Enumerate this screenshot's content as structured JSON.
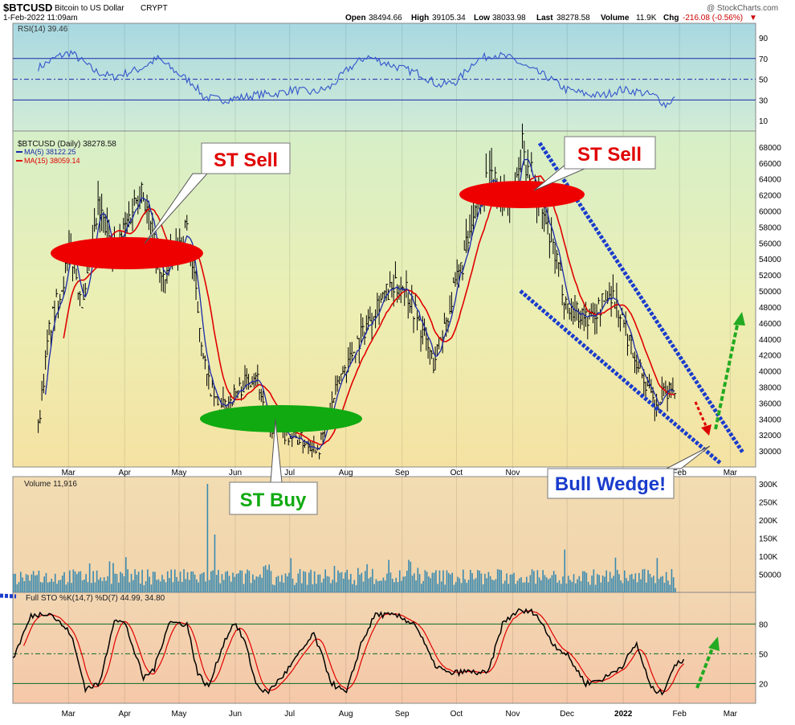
{
  "header": {
    "symbol": "$BTCUSD",
    "name": "Bitcoin to US Dollar",
    "exchange": "CRYPT",
    "date": "1-Feb-2022 11:09am",
    "watermark": "@ StockCharts.com",
    "open_label": "Open",
    "open": "38494.66",
    "high_label": "High",
    "high": "39105.34",
    "low_label": "Low",
    "low": "38033.98",
    "last_label": "Last",
    "last": "38278.58",
    "volume_label": "Volume",
    "volume": "11.9K",
    "chg_label": "Chg",
    "chg": "-216.08 (-0.56%)"
  },
  "colors": {
    "up": "#00aa00",
    "down": "#dd0000",
    "price_bar": "#000000",
    "ma5": "#1a2aa8",
    "ma15": "#e00000",
    "rsi": "#3355cc",
    "volume": "#3a8ab0",
    "sto_k": "#000000",
    "sto_d": "#e00000",
    "wedge": "#1a3ccc",
    "sell": "#ee0000",
    "buy": "#11aa11"
  },
  "chart_data": [
    {
      "type": "line",
      "title": "RSI(14) 39.46",
      "series": [
        {
          "name": "RSI(14)",
          "value_last": 39.46
        }
      ],
      "y_ticks": [
        90,
        70,
        50,
        30,
        10
      ],
      "reference_lines": [
        70,
        50,
        30
      ],
      "key_points": [
        {
          "x": "Feb",
          "y": 61
        },
        {
          "x": "Feb",
          "y": 76
        },
        {
          "x": "Mar",
          "y": 54
        },
        {
          "x": "Apr",
          "y": 70
        },
        {
          "x": "May",
          "y": 36
        },
        {
          "x": "May",
          "y": 25
        },
        {
          "x": "Jun",
          "y": 34
        },
        {
          "x": "Jul",
          "y": 38
        },
        {
          "x": "Jul",
          "y": 42
        },
        {
          "x": "Aug",
          "y": 72
        },
        {
          "x": "Sep",
          "y": 58
        },
        {
          "x": "Sep",
          "y": 45
        },
        {
          "x": "Oct",
          "y": 75
        },
        {
          "x": "Nov",
          "y": 58
        },
        {
          "x": "Dec",
          "y": 33
        },
        {
          "x": "Jan",
          "y": 33
        },
        {
          "x": "Jan",
          "y": 22
        },
        {
          "x": "Feb",
          "y": 39
        }
      ]
    },
    {
      "type": "line",
      "title": "$BTCUSD (Daily) 38278.58",
      "series": [
        {
          "name": "$BTCUSD (Daily)",
          "value_last": 38278.58
        },
        {
          "name": "MA(5)",
          "label": "MA(5) 38122.25",
          "value_last": 38122.25
        },
        {
          "name": "MA(15)",
          "label": "MA(15) 38059.14",
          "value_last": 38059.14
        }
      ],
      "x_ticks": [
        "Mar",
        "Apr",
        "May",
        "Jun",
        "Jul",
        "Aug",
        "Sep",
        "Oct",
        "Nov",
        "Dec",
        "Feb",
        "Mar"
      ],
      "y_ticks": [
        68000,
        66000,
        64000,
        62000,
        60000,
        58000,
        56000,
        54000,
        52000,
        50000,
        48000,
        46000,
        44000,
        42000,
        40000,
        38000,
        36000,
        34000,
        32000,
        30000
      ],
      "y_tick_labels": [
        "68000",
        "66000",
        "64000",
        "62000",
        "60000",
        "58000",
        "56000",
        "54000",
        "52000",
        "50000",
        "48000",
        "46000",
        "44000",
        "42000",
        "40000",
        "38000",
        "36000",
        "34000",
        "32000",
        "30000"
      ],
      "ylim": [
        28000,
        70000
      ],
      "price_key_points": [
        {
          "x": "2021-02-15",
          "y": 33000
        },
        {
          "x": "2021-02-21",
          "y": 45000
        },
        {
          "x": "2021-03-05",
          "y": 55000
        },
        {
          "x": "2021-03-12",
          "y": 48000
        },
        {
          "x": "2021-03-20",
          "y": 60000
        },
        {
          "x": "2021-03-30",
          "y": 55000
        },
        {
          "x": "2021-04-13",
          "y": 63500
        },
        {
          "x": "2021-04-24",
          "y": 51000
        },
        {
          "x": "2021-05-08",
          "y": 58000
        },
        {
          "x": "2021-05-19",
          "y": 39000
        },
        {
          "x": "2021-05-26",
          "y": 35000
        },
        {
          "x": "2021-06-15",
          "y": 40000
        },
        {
          "x": "2021-06-22",
          "y": 33000
        },
        {
          "x": "2021-07-20",
          "y": 30500
        },
        {
          "x": "2021-08-01",
          "y": 39500
        },
        {
          "x": "2021-08-22",
          "y": 49000
        },
        {
          "x": "2021-09-05",
          "y": 51000
        },
        {
          "x": "2021-09-21",
          "y": 41000
        },
        {
          "x": "2021-10-05",
          "y": 52000
        },
        {
          "x": "2021-10-20",
          "y": 64000
        },
        {
          "x": "2021-11-03",
          "y": 61000
        },
        {
          "x": "2021-11-09",
          "y": 68000
        },
        {
          "x": "2021-11-25",
          "y": 56000
        },
        {
          "x": "2021-12-04",
          "y": 48000
        },
        {
          "x": "2021-12-17",
          "y": 46500
        },
        {
          "x": "2021-12-28",
          "y": 50000
        },
        {
          "x": "2022-01-10",
          "y": 42000
        },
        {
          "x": "2022-01-22",
          "y": 35000
        },
        {
          "x": "2022-01-25",
          "y": 36800
        },
        {
          "x": "2022-02-01",
          "y": 38278.58
        }
      ],
      "annotations": [
        "ST Sell",
        "ST Sell",
        "ST Buy",
        "Bull Wedge!"
      ]
    },
    {
      "type": "bar",
      "title": "Volume 11,916",
      "series": [
        {
          "name": "Volume",
          "value_last": 11916
        }
      ],
      "y_ticks": [
        "300K",
        "250K",
        "200K",
        "150K",
        "100K",
        "50000"
      ],
      "ylim": [
        0,
        320000
      ],
      "key_points": [
        {
          "x": "2021-02-15",
          "y": 60000
        },
        {
          "x": "2021-03-15",
          "y": 80000
        },
        {
          "x": "2021-05-19",
          "y": 300000
        },
        {
          "x": "2021-05-23",
          "y": 160000
        },
        {
          "x": "2021-06-20",
          "y": 75000
        },
        {
          "x": "2021-09-07",
          "y": 90000
        },
        {
          "x": "2022-01-22",
          "y": 95000
        },
        {
          "x": "2022-02-01",
          "y": 11916
        }
      ]
    },
    {
      "type": "line",
      "title": "Full STO %K(14,7) %D(7) 44.99, 34.80",
      "series": [
        {
          "name": "%K(14,7)",
          "value_last": 44.99
        },
        {
          "name": "%D(7)",
          "value_last": 34.8
        }
      ],
      "y_ticks": [
        80,
        50,
        20
      ],
      "reference_lines": [
        80,
        50,
        20
      ],
      "x_ticks": [
        "Mar",
        "Apr",
        "May",
        "Jun",
        "Jul",
        "Aug",
        "Sep",
        "Oct",
        "Nov",
        "Dec",
        "2022",
        "Feb",
        "Mar"
      ],
      "key_points": [
        {
          "x": "Feb",
          "y": 45
        },
        {
          "x": "Feb",
          "y": 90
        },
        {
          "x": "Mar",
          "y": 15
        },
        {
          "x": "Mar",
          "y": 85
        },
        {
          "x": "Apr",
          "y": 30
        },
        {
          "x": "Apr",
          "y": 82
        },
        {
          "x": "May",
          "y": 15
        },
        {
          "x": "May",
          "y": 80
        },
        {
          "x": "Jun",
          "y": 12
        },
        {
          "x": "Jun",
          "y": 40
        },
        {
          "x": "Jun",
          "y": 70
        },
        {
          "x": "Jul",
          "y": 10
        },
        {
          "x": "Aug",
          "y": 90
        },
        {
          "x": "Sep",
          "y": 75
        },
        {
          "x": "Sep",
          "y": 30
        },
        {
          "x": "Oct",
          "y": 93
        },
        {
          "x": "Oct",
          "y": 90
        },
        {
          "x": "Nov",
          "y": 30
        },
        {
          "x": "Dec",
          "y": 18
        },
        {
          "x": "Dec",
          "y": 38
        },
        {
          "x": "Jan",
          "y": 60
        },
        {
          "x": "Jan",
          "y": 10
        },
        {
          "x": "Jan",
          "y": 35
        },
        {
          "x": "Feb",
          "y": 45
        }
      ]
    }
  ],
  "annotations": {
    "st_sell_1": "ST Sell",
    "st_sell_2": "ST Sell",
    "st_buy": "ST Buy",
    "bull_wedge": "Bull Wedge!"
  },
  "rsi": {
    "label": "RSI(14) 39.46",
    "ticks": [
      "90",
      "70",
      "50",
      "30",
      "10"
    ]
  },
  "price": {
    "label": "$BTCUSD (Daily) 38278.58",
    "ma5_label": "MA(5) 38122.25",
    "ma15_label": "MA(15) 38059.14",
    "x_ticks": [
      "Mar",
      "Apr",
      "May",
      "Jun",
      "Jul",
      "Aug",
      "Sep",
      "Oct",
      "Nov",
      "Dec",
      "Feb",
      "Mar"
    ]
  },
  "volume": {
    "label": "Volume 11,916"
  },
  "sto": {
    "label": "Full STO %K(14,7) %D(7) 44.99, 34.80",
    "ticks": [
      "80",
      "50",
      "20"
    ]
  },
  "x_axis": {
    "labels": [
      "Mar",
      "Apr",
      "May",
      "Jun",
      "Jul",
      "Aug",
      "Sep",
      "Oct",
      "Nov",
      "Dec",
      "2022",
      "Feb",
      "Mar"
    ]
  }
}
